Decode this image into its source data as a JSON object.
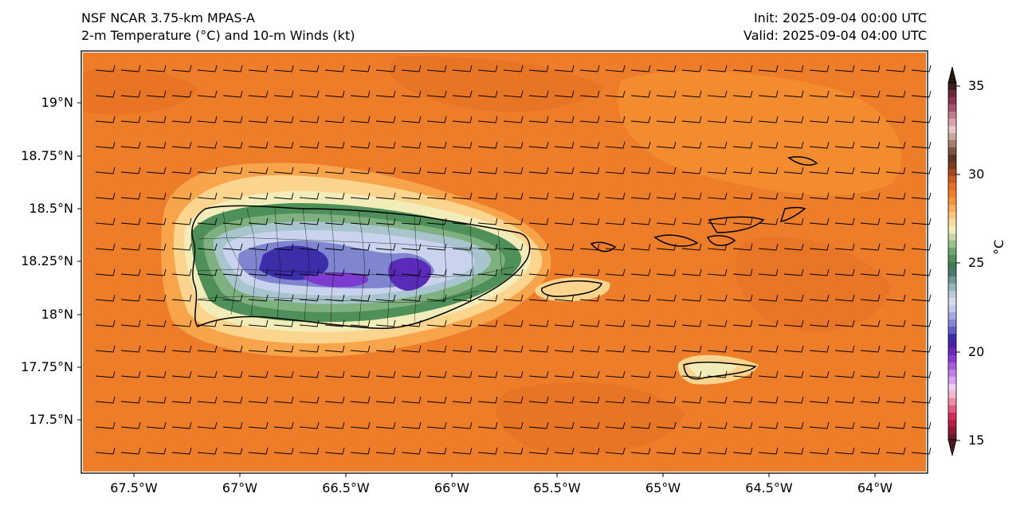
{
  "title": {
    "line1": "NSF NCAR 3.75-km MPAS-A",
    "line2": "2-m Temperature (°C) and 10-m Winds (kt)",
    "init": "Init: 2025-09-04 00:00 UTC",
    "valid": "Valid: 2025-09-04 04:00 UTC"
  },
  "axes": {
    "lat_labels": [
      "19°N",
      "18.75°N",
      "18.5°N",
      "18.25°N",
      "18°N",
      "17.75°N",
      "17.5°N"
    ],
    "lon_labels": [
      "67.5°W",
      "67°W",
      "66.5°W",
      "66°W",
      "65.5°W",
      "65°W",
      "64.5°W",
      "64°W"
    ]
  },
  "colorbar": {
    "ticks": [
      "35",
      "30",
      "25",
      "20",
      "15"
    ],
    "unit": "°C"
  },
  "map": {
    "base_color": "#f0802a",
    "features": [
      "Puerto Rico",
      "Vieques",
      "Culebra",
      "U.S. Virgin Islands",
      "St. Croix"
    ],
    "wind_direction": "easterly"
  }
}
